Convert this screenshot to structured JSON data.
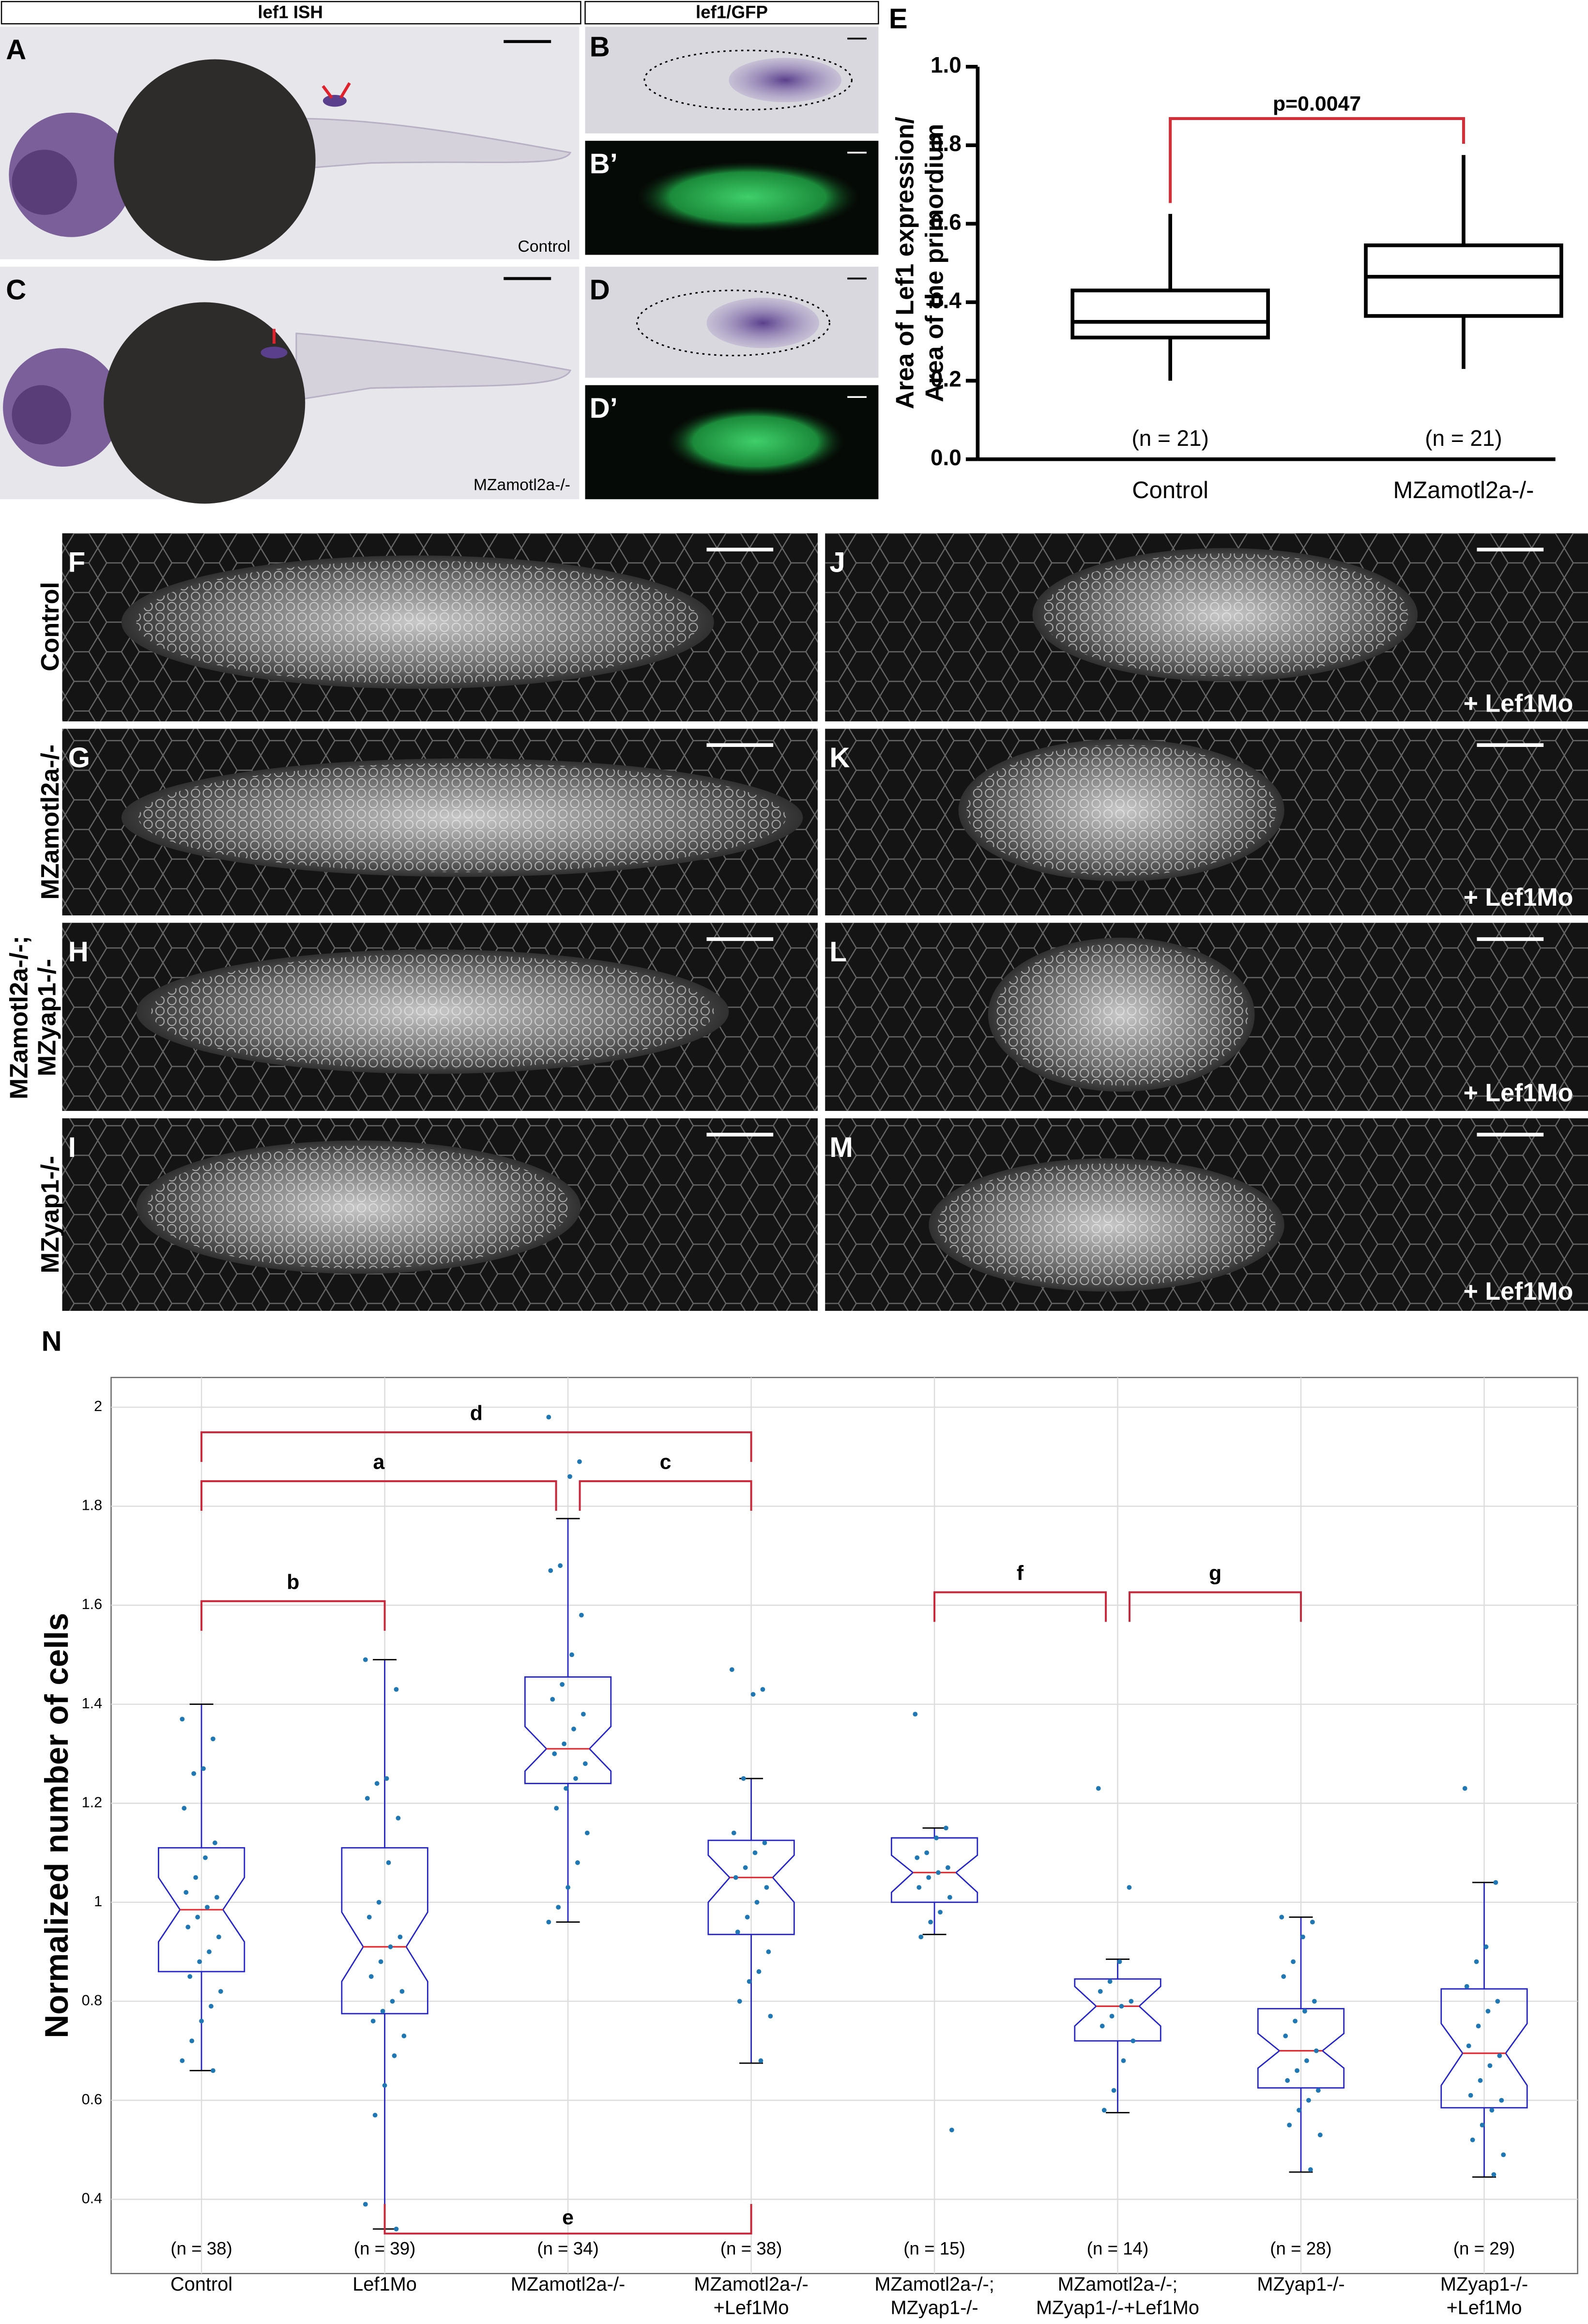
{
  "panels": {
    "headers": [
      "lef1 ISH",
      "lef1/GFP"
    ],
    "labels": [
      "A",
      "B",
      "B’",
      "C",
      "D",
      "D’",
      "E",
      "F",
      "G",
      "H",
      "I",
      "J",
      "K",
      "L",
      "M",
      "N"
    ],
    "image_captions": [
      "Control",
      "MZamotl2a-/-"
    ],
    "row_labels": [
      [
        "Control"
      ],
      [
        "MZamotl2a-/-"
      ],
      [
        "MZamotl2a-/-;",
        "MZyap1-/-"
      ],
      [
        "MZyap1-/-"
      ]
    ],
    "treatment_labels": [
      "+ Lef1Mo",
      "+ Lef1Mo",
      "+ Lef1Mo",
      "+ Lef1Mo"
    ]
  },
  "chart_data": [
    {
      "type": "box",
      "ylabel": [
        "Area of Lef1 expression/",
        "Area of the primordium"
      ],
      "categories": [
        "Control",
        "MZamotl2a-/-"
      ],
      "whisker_low": [
        0.2,
        0.23
      ],
      "q1": [
        0.31,
        0.365
      ],
      "median": [
        0.35,
        0.465
      ],
      "q3": [
        0.43,
        0.545
      ],
      "whisker_high": [
        0.625,
        0.775
      ],
      "n_labels": [
        "(n = 21)",
        "(n = 21)"
      ],
      "annotation": "p=0.0047",
      "color": "#000000",
      "bracket_color": "#d0303a",
      "ylim": [
        0,
        1
      ],
      "yticks": [
        {
          "value": 0,
          "label": "0.0"
        },
        0.2,
        0.4,
        0.6,
        0.8,
        {
          "value": 1,
          "label": "1.0"
        }
      ],
      "grid": false
    },
    {
      "type": "box",
      "ylabel": "Normalized number of cells",
      "categories": [
        [
          "Control"
        ],
        [
          "Lef1Mo"
        ],
        [
          "MZamotl2a-/-"
        ],
        [
          "MZamotl2a-/-",
          "+Lef1Mo"
        ],
        [
          "MZamotl2a-/-;",
          "MZyap1-/-"
        ],
        [
          "MZamotl2a-/-;",
          "MZyap1-/-+Lef1Mo"
        ],
        [
          "MZyap1-/-"
        ],
        [
          "MZyap1-/-",
          "+Lef1Mo"
        ]
      ],
      "whisker_low": [
        0.66,
        0.34,
        0.96,
        0.675,
        0.935,
        0.575,
        0.455,
        0.445
      ],
      "q1": [
        0.86,
        0.775,
        1.24,
        0.935,
        1.0,
        0.72,
        0.625,
        0.585
      ],
      "notch_low": [
        0.92,
        0.84,
        1.265,
        1.0,
        1.02,
        0.75,
        0.665,
        0.63
      ],
      "median": [
        0.985,
        0.91,
        1.31,
        1.05,
        1.06,
        0.79,
        0.7,
        0.695
      ],
      "notch_high": [
        1.05,
        0.98,
        1.355,
        1.095,
        1.095,
        0.83,
        0.735,
        0.755
      ],
      "q3": [
        1.11,
        1.11,
        1.455,
        1.125,
        1.13,
        0.845,
        0.785,
        0.825
      ],
      "whisker_high": [
        1.4,
        1.49,
        1.775,
        1.25,
        1.15,
        0.885,
        0.97,
        1.04
      ],
      "points": [
        [
          1.37,
          1.33,
          1.27,
          1.26,
          1.19,
          1.12,
          1.09,
          1.05,
          1.02,
          1.01,
          0.99,
          0.97,
          0.95,
          0.93,
          0.9,
          0.88,
          0.85,
          0.82,
          0.79,
          0.76,
          0.72,
          0.68,
          0.66
        ],
        [
          1.49,
          1.43,
          1.25,
          1.24,
          1.21,
          1.17,
          1.08,
          1.0,
          0.97,
          0.93,
          0.91,
          0.88,
          0.85,
          0.82,
          0.8,
          0.78,
          0.76,
          0.73,
          0.69,
          0.63,
          0.57,
          0.39,
          0.34
        ],
        [
          1.98,
          1.89,
          1.86,
          1.68,
          1.67,
          1.58,
          1.5,
          1.44,
          1.41,
          1.38,
          1.35,
          1.32,
          1.3,
          1.28,
          1.25,
          1.23,
          1.19,
          1.14,
          1.08,
          1.03,
          0.99,
          0.96
        ],
        [
          1.47,
          1.43,
          1.42,
          1.25,
          1.14,
          1.12,
          1.1,
          1.07,
          1.05,
          1.03,
          1.0,
          0.97,
          0.94,
          0.9,
          0.86,
          0.84,
          0.8,
          0.77,
          0.68
        ],
        [
          1.38,
          1.15,
          1.13,
          1.1,
          1.09,
          1.07,
          1.06,
          1.05,
          1.03,
          1.01,
          0.98,
          0.96,
          0.93,
          0.54
        ],
        [
          1.23,
          1.03,
          0.88,
          0.84,
          0.82,
          0.8,
          0.79,
          0.77,
          0.75,
          0.72,
          0.68,
          0.62,
          0.58
        ],
        [
          0.97,
          0.96,
          0.93,
          0.88,
          0.85,
          0.8,
          0.78,
          0.76,
          0.73,
          0.7,
          0.68,
          0.66,
          0.64,
          0.62,
          0.6,
          0.58,
          0.55,
          0.53,
          0.46
        ],
        [
          1.23,
          1.04,
          0.91,
          0.88,
          0.83,
          0.8,
          0.78,
          0.75,
          0.71,
          0.69,
          0.67,
          0.64,
          0.61,
          0.6,
          0.58,
          0.55,
          0.52,
          0.49,
          0.45
        ]
      ],
      "n_labels": [
        "(n = 38)",
        "(n = 39)",
        "(n = 34)",
        "(n = 38)",
        "(n = 15)",
        "(n = 14)",
        "(n = 28)",
        "(n = 29)"
      ],
      "annotations": [
        "d",
        "a",
        "c",
        "b",
        "f",
        "g",
        "e"
      ],
      "color": "#2323c8",
      "median_color": "#e8262e",
      "point_color": "#1f77b4",
      "bracket_color": "#c8283c",
      "ylim": [
        0.25,
        2.06
      ],
      "yticks": [
        0.4,
        0.6,
        0.8,
        1,
        1.2,
        1.4,
        1.6,
        1.8,
        2
      ],
      "grid": true
    }
  ]
}
